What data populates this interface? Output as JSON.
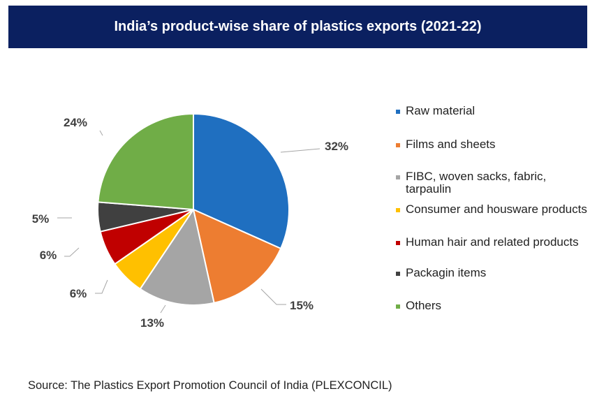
{
  "title": "India’s product-wise share of plastics exports (2021-22)",
  "source": "Source: The Plastics Export Promotion Council of India (PLEXCONCIL)",
  "chart_data": {
    "type": "pie",
    "categories": [
      "Raw material",
      "Films and sheets",
      "FIBC, woven sacks, fabric, tarpaulin",
      "Consumer and housware products",
      "Human hair and related products",
      "Packagin items",
      "Others"
    ],
    "values": [
      32,
      15,
      13,
      6,
      6,
      5,
      24
    ],
    "labels": [
      "32%",
      "15%",
      "13%",
      "6%",
      "6%",
      "5%",
      "24%"
    ],
    "colors": [
      "#1f6fc0",
      "#ed7d31",
      "#a5a5a5",
      "#ffc000",
      "#c00000",
      "#404040",
      "#70ad47"
    ],
    "legend": "right"
  }
}
